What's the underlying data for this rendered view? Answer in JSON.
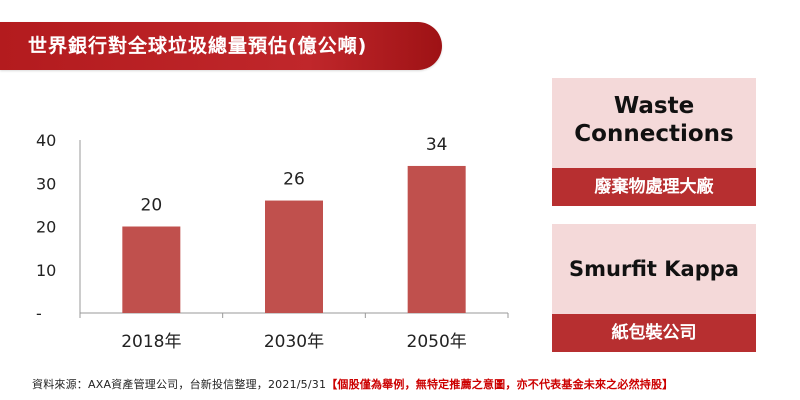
{
  "header": {
    "title": "世界銀行對全球垃圾總量預估(億公噸)"
  },
  "chart_data": {
    "type": "bar",
    "categories": [
      "2018年",
      "2030年",
      "2050年"
    ],
    "values": [
      20,
      26,
      34
    ],
    "ylim": [
      0,
      40
    ],
    "yticks": [
      {
        "value": 40,
        "label": "40"
      },
      {
        "value": 30,
        "label": "30"
      },
      {
        "value": 20,
        "label": "20"
      },
      {
        "value": 10,
        "label": "10"
      },
      {
        "value": 0,
        "label": "-"
      }
    ],
    "grid": false,
    "bar_color": "#c0504d"
  },
  "cards": [
    {
      "title_line1": "Waste",
      "title_line2": "Connections",
      "subtitle": "廢棄物處理大廠"
    },
    {
      "title_line1": "Smurfit Kappa",
      "subtitle": "紙包裝公司"
    }
  ],
  "footer": {
    "source": "資料來源：AXA資產管理公司，台新投信整理，2021/5/31",
    "disclaimer": "【個股僅為舉例，無特定推薦之意圖，亦不代表基金未來之必然持股】"
  },
  "colors": {
    "accent": "#c0272b",
    "card_bg": "#f4d9d9",
    "card_bar": "#b72f30"
  }
}
